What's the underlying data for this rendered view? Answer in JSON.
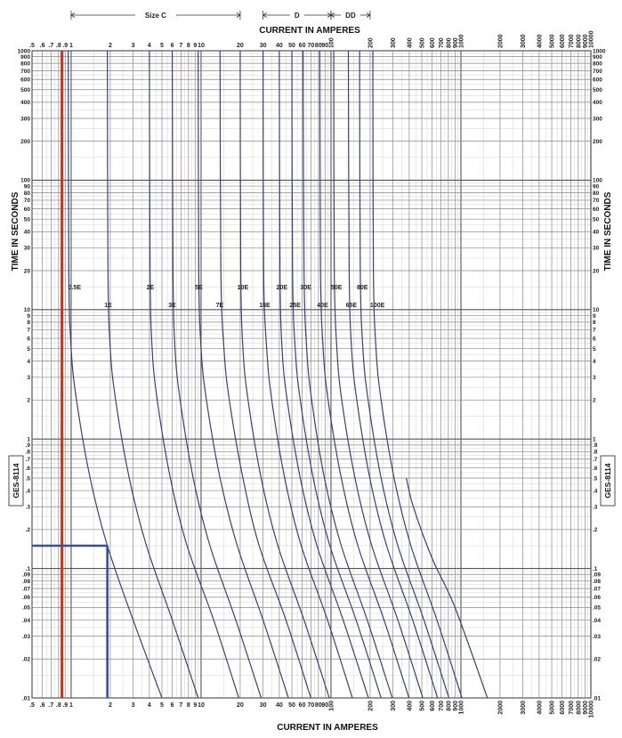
{
  "chart_data": {
    "type": "line",
    "title": "",
    "xlabel": "CURRENT IN  AMPERES",
    "ylabel": "TIME IN SECONDS",
    "xscale": "log",
    "yscale": "log",
    "xlim": [
      0.5,
      10000
    ],
    "ylim": [
      0.01,
      1000
    ],
    "grid": true,
    "doc_id": "GES-8114",
    "x_ticks_top": [
      ".5",
      ".6",
      ".7",
      ".8",
      ".9",
      "1",
      "2",
      "3",
      "4",
      "5",
      "6",
      "7",
      "8",
      "9",
      "10",
      "20",
      "30",
      "40",
      "50",
      "60",
      "70",
      "80",
      "90",
      "100",
      "200",
      "300",
      "400",
      "500",
      "600",
      "700",
      "800",
      "900",
      "1000",
      "2000",
      "3000",
      "4000",
      "5000",
      "6000",
      "7000",
      "8000",
      "9000",
      "10000"
    ],
    "x_ticks_bottom": [
      ".5",
      ".6",
      ".7",
      ".8",
      ".9",
      "1",
      "2",
      "3",
      "4",
      "5",
      "6",
      "7",
      "8",
      "9",
      "10",
      "20",
      "30",
      "40",
      "50",
      "60",
      "70",
      "80",
      "90",
      "100",
      "200",
      "300",
      "400",
      "500",
      "600",
      "700",
      "800",
      "900",
      "1000",
      "2000",
      "3000",
      "4000",
      "5000",
      "6000",
      "7000",
      "8000",
      "9000",
      "10000"
    ],
    "y_ticks": [
      {
        "v": 1000,
        "t": "1000"
      },
      {
        "v": 900,
        "t": "900"
      },
      {
        "v": 800,
        "t": "800"
      },
      {
        "v": 700,
        "t": "700"
      },
      {
        "v": 600,
        "t": "600"
      },
      {
        "v": 500,
        "t": "500"
      },
      {
        "v": 400,
        "t": "400"
      },
      {
        "v": 300,
        "t": "300"
      },
      {
        "v": 200,
        "t": "200"
      },
      {
        "v": 100,
        "t": "100"
      },
      {
        "v": 90,
        "t": "90"
      },
      {
        "v": 80,
        "t": "80"
      },
      {
        "v": 70,
        "t": "70"
      },
      {
        "v": 60,
        "t": "60"
      },
      {
        "v": 50,
        "t": "50"
      },
      {
        "v": 40,
        "t": "40"
      },
      {
        "v": 30,
        "t": "30"
      },
      {
        "v": 20,
        "t": "20"
      },
      {
        "v": 10,
        "t": "10"
      },
      {
        "v": 9,
        "t": "9"
      },
      {
        "v": 8,
        "t": "8"
      },
      {
        "v": 7,
        "t": "7"
      },
      {
        "v": 6,
        "t": "6"
      },
      {
        "v": 5,
        "t": "5"
      },
      {
        "v": 4,
        "t": "4"
      },
      {
        "v": 3,
        "t": "3"
      },
      {
        "v": 2,
        "t": "2"
      },
      {
        "v": 1,
        "t": "1"
      },
      {
        "v": 0.9,
        "t": ".9"
      },
      {
        "v": 0.8,
        "t": ".8"
      },
      {
        "v": 0.7,
        "t": ".7"
      },
      {
        "v": 0.6,
        "t": ".6"
      },
      {
        "v": 0.5,
        "t": ".5"
      },
      {
        "v": 0.4,
        "t": ".4"
      },
      {
        "v": 0.3,
        "t": ".3"
      },
      {
        "v": 0.2,
        "t": ".2"
      },
      {
        "v": 0.1,
        "t": ".1"
      },
      {
        "v": 0.09,
        "t": ".09"
      },
      {
        "v": 0.08,
        "t": ".08"
      },
      {
        "v": 0.07,
        "t": ".07"
      },
      {
        "v": 0.06,
        "t": ".06"
      },
      {
        "v": 0.05,
        "t": ".05"
      },
      {
        "v": 0.04,
        "t": ".04"
      },
      {
        "v": 0.03,
        "t": ".03"
      },
      {
        "v": 0.02,
        "t": ".02"
      },
      {
        "v": 0.01,
        "t": ".01"
      }
    ],
    "series": [
      {
        "name": "0.5E",
        "label_at": [
          0.95,
          15
        ],
        "points": [
          [
            0.95,
            1000
          ],
          [
            0.96,
            20
          ],
          [
            1.0,
            5
          ],
          [
            1.1,
            2
          ],
          [
            1.4,
            0.5
          ],
          [
            1.9,
            0.15
          ],
          [
            3.0,
            0.04
          ],
          [
            5.0,
            0.01
          ]
        ]
      },
      {
        "name": "1E",
        "label_at": [
          1.8,
          11
        ],
        "points": [
          [
            1.9,
            1000
          ],
          [
            1.92,
            20
          ],
          [
            2.0,
            5
          ],
          [
            2.2,
            2
          ],
          [
            2.8,
            0.5
          ],
          [
            3.8,
            0.15
          ],
          [
            6.0,
            0.04
          ],
          [
            9.5,
            0.01
          ]
        ]
      },
      {
        "name": "2E",
        "label_at": [
          3.8,
          15
        ],
        "points": [
          [
            4.0,
            1000
          ],
          [
            4.05,
            20
          ],
          [
            4.2,
            5
          ],
          [
            4.6,
            2
          ],
          [
            5.8,
            0.5
          ],
          [
            7.8,
            0.15
          ],
          [
            12.5,
            0.04
          ],
          [
            19.5,
            0.01
          ]
        ]
      },
      {
        "name": "3E",
        "label_at": [
          5.6,
          11
        ],
        "points": [
          [
            6.0,
            1000
          ],
          [
            6.08,
            20
          ],
          [
            6.3,
            5
          ],
          [
            6.9,
            2
          ],
          [
            8.7,
            0.5
          ],
          [
            11.7,
            0.15
          ],
          [
            18.5,
            0.04
          ],
          [
            29,
            0.01
          ]
        ]
      },
      {
        "name": "5E",
        "label_at": [
          9.0,
          15
        ],
        "points": [
          [
            9.5,
            1000
          ],
          [
            9.6,
            20
          ],
          [
            10,
            5
          ],
          [
            11,
            2
          ],
          [
            14,
            0.5
          ],
          [
            19,
            0.15
          ],
          [
            30,
            0.04
          ],
          [
            47,
            0.01
          ]
        ]
      },
      {
        "name": "7E",
        "label_at": [
          13,
          11
        ],
        "points": [
          [
            14,
            1000
          ],
          [
            14.2,
            20
          ],
          [
            15,
            5
          ],
          [
            16.5,
            2
          ],
          [
            21,
            0.5
          ],
          [
            28,
            0.15
          ],
          [
            45,
            0.04
          ],
          [
            70,
            0.01
          ]
        ]
      },
      {
        "name": "10E",
        "label_at": [
          19,
          15
        ],
        "points": [
          [
            20,
            1000
          ],
          [
            20.2,
            20
          ],
          [
            21,
            5
          ],
          [
            23,
            2
          ],
          [
            29,
            0.5
          ],
          [
            39,
            0.15
          ],
          [
            62,
            0.04
          ],
          [
            97,
            0.01
          ]
        ]
      },
      {
        "name": "15E",
        "label_at": [
          28,
          11
        ],
        "points": [
          [
            30,
            1000
          ],
          [
            30.3,
            20
          ],
          [
            32,
            5
          ],
          [
            35,
            2
          ],
          [
            44,
            0.5
          ],
          [
            59,
            0.15
          ],
          [
            94,
            0.04
          ],
          [
            146,
            0.01
          ]
        ]
      },
      {
        "name": "20E",
        "label_at": [
          38,
          15
        ],
        "points": [
          [
            40,
            1000
          ],
          [
            40.5,
            20
          ],
          [
            42,
            5
          ],
          [
            46,
            2
          ],
          [
            58,
            0.5
          ],
          [
            78,
            0.15
          ],
          [
            124,
            0.04
          ],
          [
            194,
            0.01
          ]
        ]
      },
      {
        "name": "25E",
        "label_at": [
          48,
          11
        ],
        "points": [
          [
            50,
            1000
          ],
          [
            50.6,
            20
          ],
          [
            53,
            5
          ],
          [
            58,
            2
          ],
          [
            73,
            0.5
          ],
          [
            98,
            0.15
          ],
          [
            156,
            0.04
          ],
          [
            243,
            0.01
          ]
        ]
      },
      {
        "name": "30E",
        "label_at": [
          58,
          15
        ],
        "points": [
          [
            61,
            1000
          ],
          [
            62,
            20
          ],
          [
            65,
            5
          ],
          [
            71,
            2
          ],
          [
            89,
            0.5
          ],
          [
            120,
            0.15
          ],
          [
            190,
            0.04
          ],
          [
            296,
            0.01
          ]
        ]
      },
      {
        "name": "40E",
        "label_at": [
          78,
          11
        ],
        "points": [
          [
            82,
            1000
          ],
          [
            83,
            20
          ],
          [
            87,
            5
          ],
          [
            95,
            2
          ],
          [
            120,
            0.5
          ],
          [
            161,
            0.15
          ],
          [
            256,
            0.04
          ],
          [
            398,
            0.01
          ]
        ]
      },
      {
        "name": "50E",
        "label_at": [
          100,
          15
        ],
        "points": [
          [
            105,
            1000
          ],
          [
            106,
            20
          ],
          [
            111,
            5
          ],
          [
            121,
            2
          ],
          [
            153,
            0.5
          ],
          [
            206,
            0.15
          ],
          [
            327,
            0.04
          ],
          [
            509,
            0.01
          ]
        ]
      },
      {
        "name": "65E",
        "label_at": [
          130,
          11
        ],
        "points": [
          [
            136,
            1000
          ],
          [
            138,
            20
          ],
          [
            144,
            5
          ],
          [
            158,
            2
          ],
          [
            199,
            0.5
          ],
          [
            268,
            0.15
          ],
          [
            425,
            0.04
          ],
          [
            661,
            0.01
          ]
        ]
      },
      {
        "name": "80E",
        "label_at": [
          158,
          15
        ],
        "points": [
          [
            166,
            1000
          ],
          [
            168,
            20
          ],
          [
            176,
            5
          ],
          [
            193,
            2
          ],
          [
            243,
            0.5
          ],
          [
            327,
            0.15
          ],
          [
            519,
            0.04
          ],
          [
            808,
            0.01
          ]
        ]
      },
      {
        "name": "100E",
        "label_at": [
          200,
          11
        ],
        "points": [
          [
            210,
            1000
          ],
          [
            212,
            20
          ],
          [
            222,
            5
          ],
          [
            243,
            2
          ],
          [
            306,
            0.5
          ],
          [
            412,
            0.15
          ],
          [
            654,
            0.04
          ],
          [
            1018,
            0.01
          ]
        ]
      },
      {
        "name": "",
        "points": [
          [
            1600,
            0.01
          ],
          [
            900,
            0.05
          ],
          [
            600,
            0.12
          ],
          [
            430,
            0.3
          ],
          [
            380,
            0.5
          ]
        ]
      }
    ],
    "annotations": {
      "red_vertical_line_x": 0.85,
      "blue_horizontal_line": {
        "y": 0.15,
        "x_from": 0.5,
        "x_to": 1.9
      },
      "blue_vertical_line": {
        "x": 1.9,
        "y_from": 0.15,
        "y_to": 0.01
      },
      "brackets": [
        {
          "label": "Size C",
          "x_from": 1,
          "x_to": 20
        },
        {
          "label": "D",
          "x_from": 30,
          "x_to": 100
        },
        {
          "label": "DD",
          "x_from": 100,
          "x_to": 200
        }
      ]
    }
  }
}
